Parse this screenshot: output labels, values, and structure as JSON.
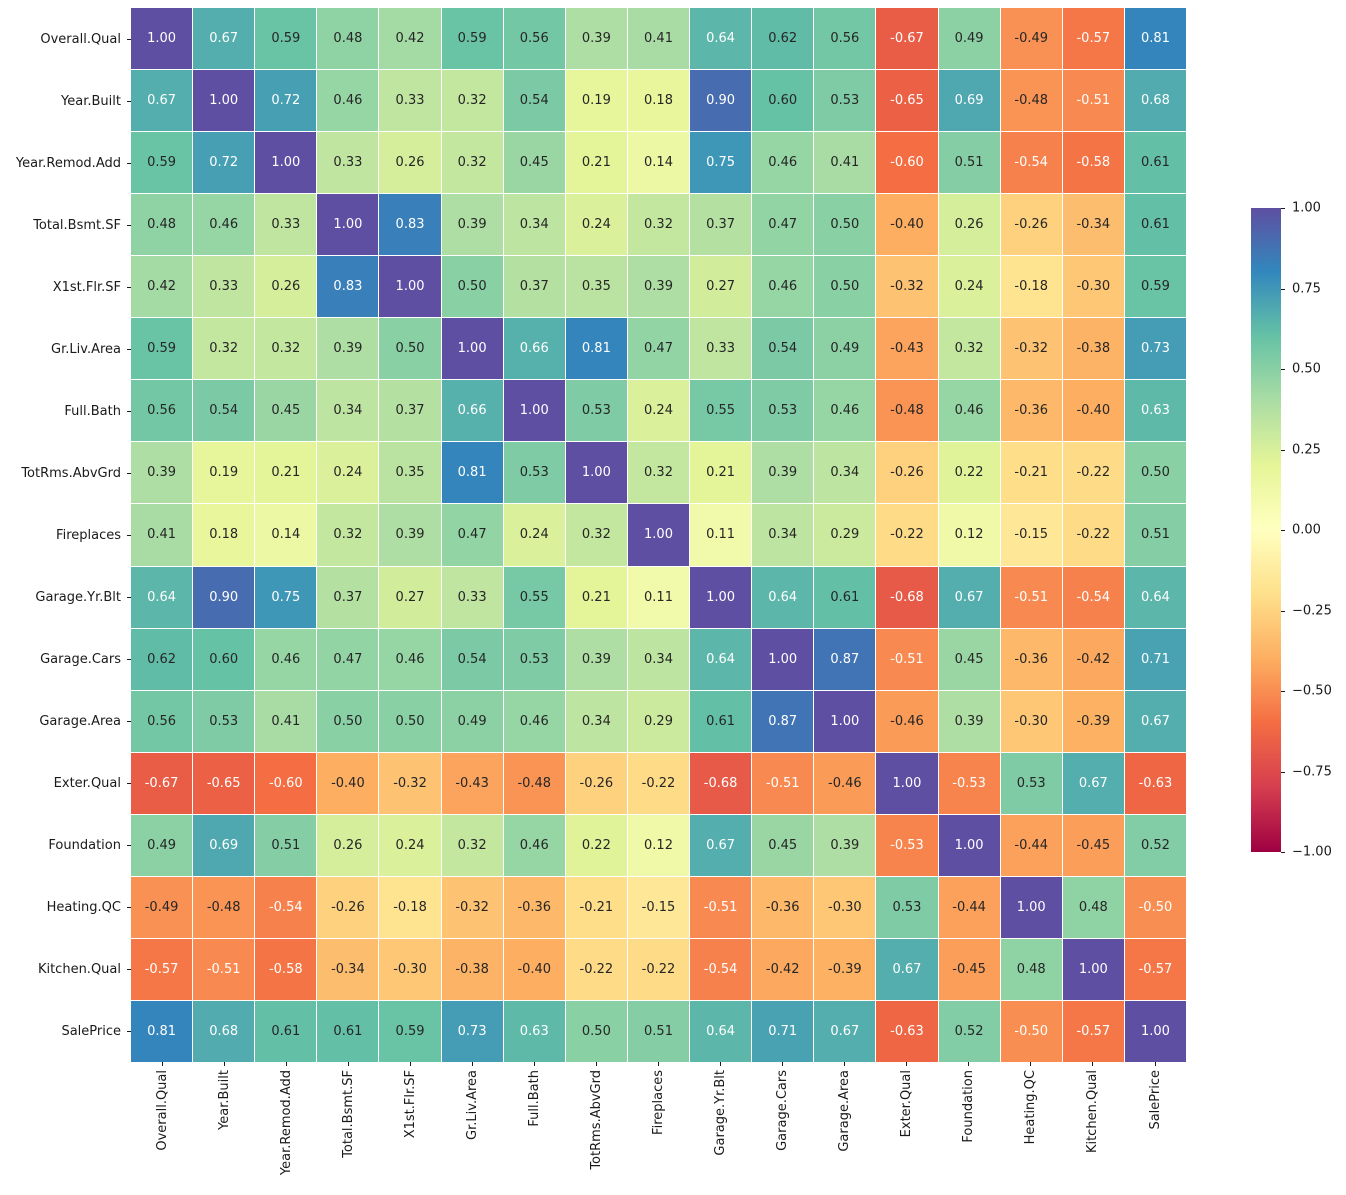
{
  "figure": {
    "background_color": "#ffffff",
    "gridline_color": "#ffffff"
  },
  "chart_data": {
    "type": "heatmap",
    "title": "",
    "xlabel": "",
    "ylabel": "",
    "variables": [
      "Overall.Qual",
      "Year.Built",
      "Year.Remod.Add",
      "Total.Bsmt.SF",
      "X1st.Flr.SF",
      "Gr.Liv.Area",
      "Full.Bath",
      "TotRms.AbvGrd",
      "Fireplaces",
      "Garage.Yr.Blt",
      "Garage.Cars",
      "Garage.Area",
      "Exter.Qual",
      "Foundation",
      "Heating.QC",
      "Kitchen.Qual",
      "SalePrice"
    ],
    "matrix": [
      [
        1.0,
        0.67,
        0.59,
        0.48,
        0.42,
        0.59,
        0.56,
        0.39,
        0.41,
        0.64,
        0.62,
        0.56,
        -0.67,
        0.49,
        -0.49,
        -0.57,
        0.81
      ],
      [
        0.67,
        1.0,
        0.72,
        0.46,
        0.33,
        0.32,
        0.54,
        0.19,
        0.18,
        0.9,
        0.6,
        0.53,
        -0.65,
        0.69,
        -0.48,
        -0.51,
        0.68
      ],
      [
        0.59,
        0.72,
        1.0,
        0.33,
        0.26,
        0.32,
        0.45,
        0.21,
        0.14,
        0.75,
        0.46,
        0.41,
        -0.6,
        0.51,
        -0.54,
        -0.58,
        0.61
      ],
      [
        0.48,
        0.46,
        0.33,
        1.0,
        0.83,
        0.39,
        0.34,
        0.24,
        0.32,
        0.37,
        0.47,
        0.5,
        -0.4,
        0.26,
        -0.26,
        -0.34,
        0.61
      ],
      [
        0.42,
        0.33,
        0.26,
        0.83,
        1.0,
        0.5,
        0.37,
        0.35,
        0.39,
        0.27,
        0.46,
        0.5,
        -0.32,
        0.24,
        -0.18,
        -0.3,
        0.59
      ],
      [
        0.59,
        0.32,
        0.32,
        0.39,
        0.5,
        1.0,
        0.66,
        0.81,
        0.47,
        0.33,
        0.54,
        0.49,
        -0.43,
        0.32,
        -0.32,
        -0.38,
        0.73
      ],
      [
        0.56,
        0.54,
        0.45,
        0.34,
        0.37,
        0.66,
        1.0,
        0.53,
        0.24,
        0.55,
        0.53,
        0.46,
        -0.48,
        0.46,
        -0.36,
        -0.4,
        0.63
      ],
      [
        0.39,
        0.19,
        0.21,
        0.24,
        0.35,
        0.81,
        0.53,
        1.0,
        0.32,
        0.21,
        0.39,
        0.34,
        -0.26,
        0.22,
        -0.21,
        -0.22,
        0.5
      ],
      [
        0.41,
        0.18,
        0.14,
        0.32,
        0.39,
        0.47,
        0.24,
        0.32,
        1.0,
        0.11,
        0.34,
        0.29,
        -0.22,
        0.12,
        -0.15,
        -0.22,
        0.51
      ],
      [
        0.64,
        0.9,
        0.75,
        0.37,
        0.27,
        0.33,
        0.55,
        0.21,
        0.11,
        1.0,
        0.64,
        0.61,
        -0.68,
        0.67,
        -0.51,
        -0.54,
        0.64
      ],
      [
        0.62,
        0.6,
        0.46,
        0.47,
        0.46,
        0.54,
        0.53,
        0.39,
        0.34,
        0.64,
        1.0,
        0.87,
        -0.51,
        0.45,
        -0.36,
        -0.42,
        0.71
      ],
      [
        0.56,
        0.53,
        0.41,
        0.5,
        0.5,
        0.49,
        0.46,
        0.34,
        0.29,
        0.61,
        0.87,
        1.0,
        -0.46,
        0.39,
        -0.3,
        -0.39,
        0.67
      ],
      [
        -0.67,
        -0.65,
        -0.6,
        -0.4,
        -0.32,
        -0.43,
        -0.48,
        -0.26,
        -0.22,
        -0.68,
        -0.51,
        -0.46,
        1.0,
        -0.53,
        0.53,
        0.67,
        -0.63
      ],
      [
        0.49,
        0.69,
        0.51,
        0.26,
        0.24,
        0.32,
        0.46,
        0.22,
        0.12,
        0.67,
        0.45,
        0.39,
        -0.53,
        1.0,
        -0.44,
        -0.45,
        0.52
      ],
      [
        -0.49,
        -0.48,
        -0.54,
        -0.26,
        -0.18,
        -0.32,
        -0.36,
        -0.21,
        -0.15,
        -0.51,
        -0.36,
        -0.3,
        0.53,
        -0.44,
        1.0,
        0.48,
        -0.5
      ],
      [
        -0.57,
        -0.51,
        -0.58,
        -0.34,
        -0.3,
        -0.38,
        -0.4,
        -0.22,
        -0.22,
        -0.54,
        -0.42,
        -0.39,
        0.67,
        -0.45,
        0.48,
        1.0,
        -0.57
      ],
      [
        0.81,
        0.68,
        0.61,
        0.61,
        0.59,
        0.73,
        0.63,
        0.5,
        0.51,
        0.64,
        0.71,
        0.67,
        -0.63,
        0.52,
        -0.5,
        -0.57,
        1.0
      ]
    ],
    "value_format_decimals": 2,
    "colormap": "Spectral",
    "vmin": -1,
    "vmax": 1,
    "colormap_anchors": [
      "#9e0142",
      "#d53e4f",
      "#f46d43",
      "#fdae61",
      "#fee08b",
      "#ffffbf",
      "#e6f598",
      "#abdda4",
      "#66c2a5",
      "#3288bd",
      "#5e4fa2"
    ],
    "annotation_colors": {
      "dark": "#262626",
      "light": "#ffffff"
    },
    "legend_position": "right",
    "colorbar": {
      "tick_labels": [
        "1.00",
        "0.75",
        "0.50",
        "0.25",
        "0.00",
        "−0.25",
        "−0.50",
        "−0.75",
        "−1.00"
      ]
    }
  }
}
